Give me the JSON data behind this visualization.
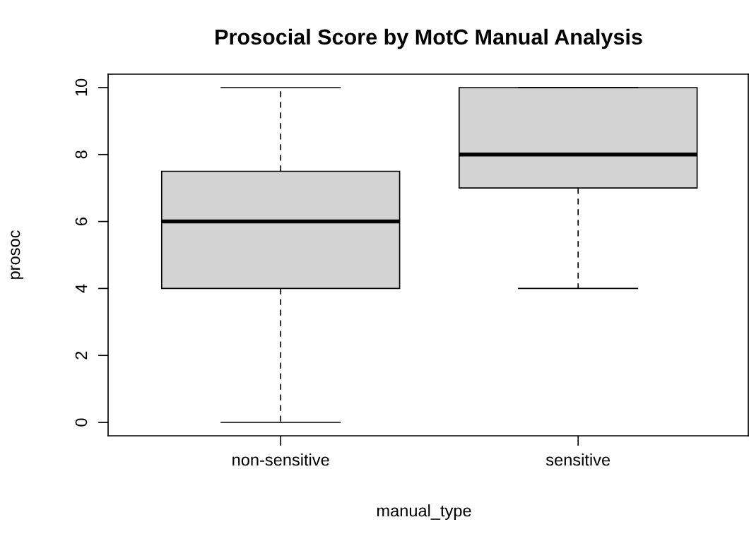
{
  "chart_data": {
    "type": "box",
    "title": "Prosocial Score by MotC Manual Analysis",
    "xlabel": "manual_type",
    "ylabel": "prosoc",
    "categories": [
      "non-sensitive",
      "sensitive"
    ],
    "boxes": [
      {
        "low": 0,
        "q1": 4,
        "median": 6,
        "q3": 7.5,
        "high": 10
      },
      {
        "low": 4,
        "q1": 7,
        "median": 8,
        "q3": 10,
        "high": 10
      }
    ],
    "color": "#d3d3d3",
    "ylim": [
      -0.4,
      10.4
    ],
    "yticks": [
      0,
      2,
      4,
      6,
      8,
      10
    ],
    "grid": false,
    "legend": false
  }
}
